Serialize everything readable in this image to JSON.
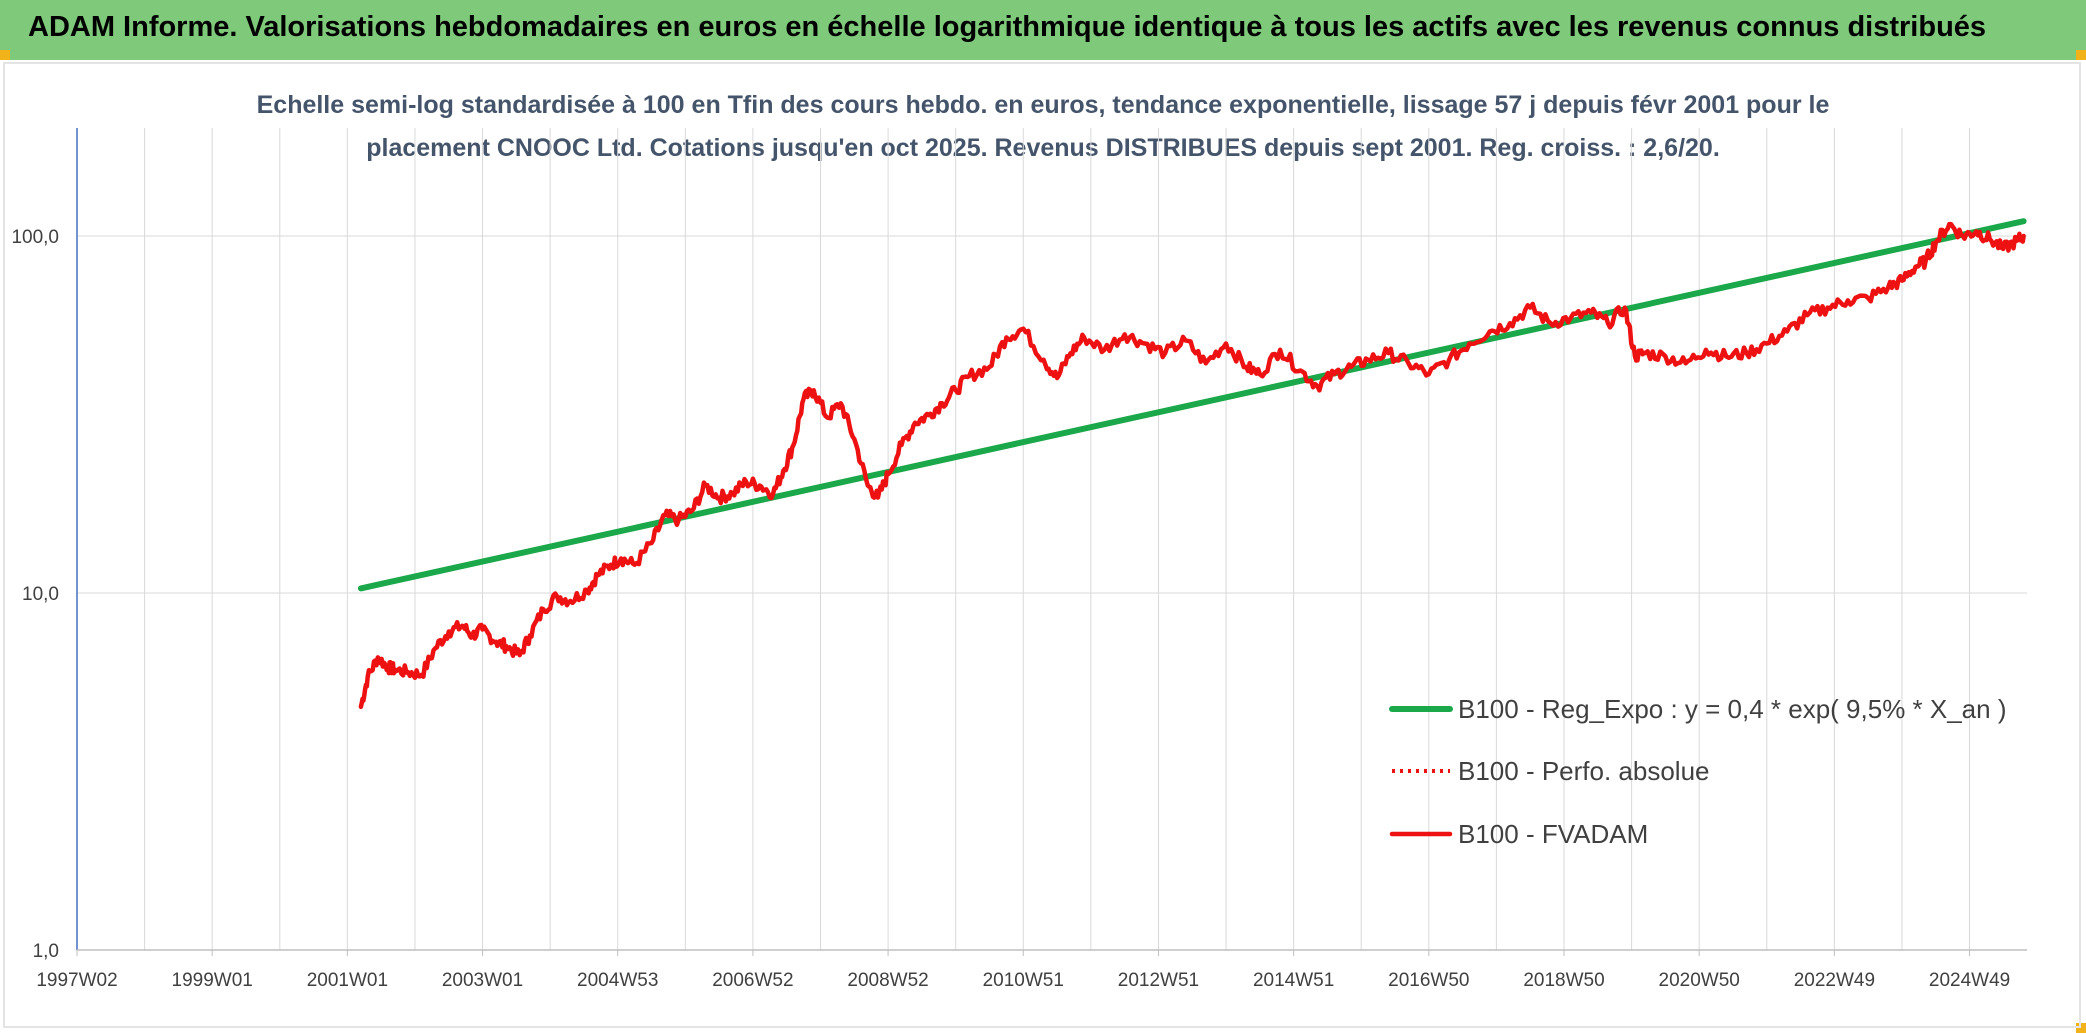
{
  "header": {
    "title": "ADAM Informe. Valorisations hebdomadaires en euros en échelle logarithmique identique à tous les actifs avec les revenus connus distribués"
  },
  "colors": {
    "banner": "#7ec97a",
    "regression": "#1aa84a",
    "fvadam": "#ee1111",
    "perfo": "#ee1111",
    "grid": "#d9d9d9",
    "axis": "#4472c4"
  },
  "chart_data": {
    "type": "line",
    "title": "Echelle semi-log standardisée à 100 en Tfin des cours hebdo. en euros, tendance exponentielle, lissage 57 j depuis févr 2001 pour le placement CNOOC Ltd. Cotations jusqu'en oct 2025. Revenus DISTRIBUES depuis sept 2001. Reg. croiss. : 2,6/20.",
    "title_lines": [
      "Echelle semi-log standardisée à 100 en Tfin des cours hebdo. en euros, tendance exponentielle, lissage 57 j depuis févr 2001 pour le",
      "placement CNOOC Ltd. Cotations jusqu'en oct 2025. Revenus DISTRIBUES depuis sept 2001. Reg. croiss. : 2,6/20."
    ],
    "y_scale": "log",
    "ylim": [
      1,
      200
    ],
    "xlim": [
      1997.0,
      2025.85
    ],
    "grid": true,
    "legend_position": "bottom-right",
    "y_ticks": [
      {
        "value": 1,
        "label": "1,0"
      },
      {
        "value": 10,
        "label": "10,0"
      },
      {
        "value": 100,
        "label": "100,0"
      }
    ],
    "x_ticks": [
      {
        "value": 1997.0,
        "label": "1997W02"
      },
      {
        "value": 1999.0,
        "label": "1999W01"
      },
      {
        "value": 2001.0,
        "label": "2001W01"
      },
      {
        "value": 2003.0,
        "label": "2003W01"
      },
      {
        "value": 2005.0,
        "label": "2004W53"
      },
      {
        "value": 2007.0,
        "label": "2006W52"
      },
      {
        "value": 2009.0,
        "label": "2008W52"
      },
      {
        "value": 2011.0,
        "label": "2010W51"
      },
      {
        "value": 2013.0,
        "label": "2012W51"
      },
      {
        "value": 2015.0,
        "label": "2014W51"
      },
      {
        "value": 2017.0,
        "label": "2016W50"
      },
      {
        "value": 2019.0,
        "label": "2018W50"
      },
      {
        "value": 2021.0,
        "label": "2020W50"
      },
      {
        "value": 2023.0,
        "label": "2022W49"
      },
      {
        "value": 2025.0,
        "label": "2024W49"
      }
    ],
    "series": [
      {
        "name": "B100 - Reg_Expo : y = 0,4 * exp( 9,5% *  X_an )",
        "style": "solid-thick",
        "x": [
          2001.2,
          2025.8
        ],
        "y": [
          10.3,
          110
        ]
      },
      {
        "name": "B100 - Perfo. absolue",
        "style": "dotted",
        "x": [],
        "y": []
      },
      {
        "name": "B100 - FVADAM",
        "style": "solid",
        "x": [
          2001.2,
          2001.3,
          2001.45,
          2001.6,
          2001.7,
          2001.9,
          2002.1,
          2002.3,
          2002.5,
          2002.7,
          2002.85,
          2003.0,
          2003.2,
          2003.35,
          2003.55,
          2003.7,
          2003.9,
          2004.1,
          2004.3,
          2004.55,
          2004.7,
          2004.9,
          2005.05,
          2005.25,
          2005.5,
          2005.7,
          2005.9,
          2006.1,
          2006.3,
          2006.5,
          2006.7,
          2006.9,
          2007.1,
          2007.3,
          2007.45,
          2007.6,
          2007.75,
          2007.9,
          2008.1,
          2008.3,
          2008.5,
          2008.7,
          2008.85,
          2009.0,
          2009.2,
          2009.4,
          2009.6,
          2009.8,
          2010.0,
          2010.2,
          2010.5,
          2010.75,
          2011.0,
          2011.3,
          2011.5,
          2011.7,
          2011.9,
          2012.2,
          2012.5,
          2012.8,
          2013.1,
          2013.4,
          2013.7,
          2014.0,
          2014.3,
          2014.5,
          2014.8,
          2015.1,
          2015.35,
          2015.6,
          2015.85,
          2016.1,
          2016.4,
          2016.7,
          2017.0,
          2017.3,
          2017.6,
          2017.9,
          2018.2,
          2018.5,
          2018.8,
          2019.1,
          2019.4,
          2019.65,
          2019.9,
          2020.05,
          2020.2,
          2020.5,
          2020.8,
          2021.1,
          2021.4,
          2021.7,
          2022.0,
          2022.3,
          2022.6,
          2022.9,
          2023.2,
          2023.5,
          2023.8,
          2024.0,
          2024.2,
          2024.35,
          2024.5,
          2024.7,
          2024.9,
          2025.1,
          2025.3,
          2025.5,
          2025.7,
          2025.8
        ],
        "y": [
          4.8,
          5.8,
          6.6,
          6.2,
          6.1,
          6.0,
          5.9,
          7.0,
          7.8,
          8.1,
          7.6,
          7.9,
          7.3,
          7.1,
          6.7,
          7.6,
          9.0,
          9.8,
          9.5,
          10.2,
          11.2,
          12.0,
          12.5,
          12.0,
          13.8,
          16.5,
          16.0,
          17.0,
          20.0,
          18.5,
          19.0,
          20.5,
          20.0,
          19.0,
          22.0,
          26.0,
          35.0,
          37.0,
          31.0,
          34.0,
          27.0,
          20.0,
          18.5,
          21.5,
          26.0,
          30.0,
          31.5,
          34.0,
          37.0,
          40.5,
          43.0,
          52.0,
          55.0,
          45.0,
          40.0,
          47.0,
          52.0,
          48.0,
          53.0,
          50.0,
          47.0,
          51.0,
          44.0,
          50.0,
          43.0,
          41.0,
          48.0,
          42.0,
          38.0,
          41.0,
          43.0,
          45.0,
          47.0,
          44.0,
          41.0,
          45.0,
          50.0,
          54.0,
          57.0,
          63.0,
          57.0,
          59.0,
          61.0,
          57.0,
          63.0,
          46.0,
          47.0,
          46.0,
          44.0,
          48.0,
          46.0,
          47.0,
          50.0,
          54.0,
          60.0,
          63.0,
          66.0,
          67.0,
          72.0,
          75.0,
          82.0,
          85.0,
          96.0,
          108.0,
          100.0,
          103.0,
          98.0,
          92.0,
          97.0,
          100.0
        ]
      }
    ]
  }
}
